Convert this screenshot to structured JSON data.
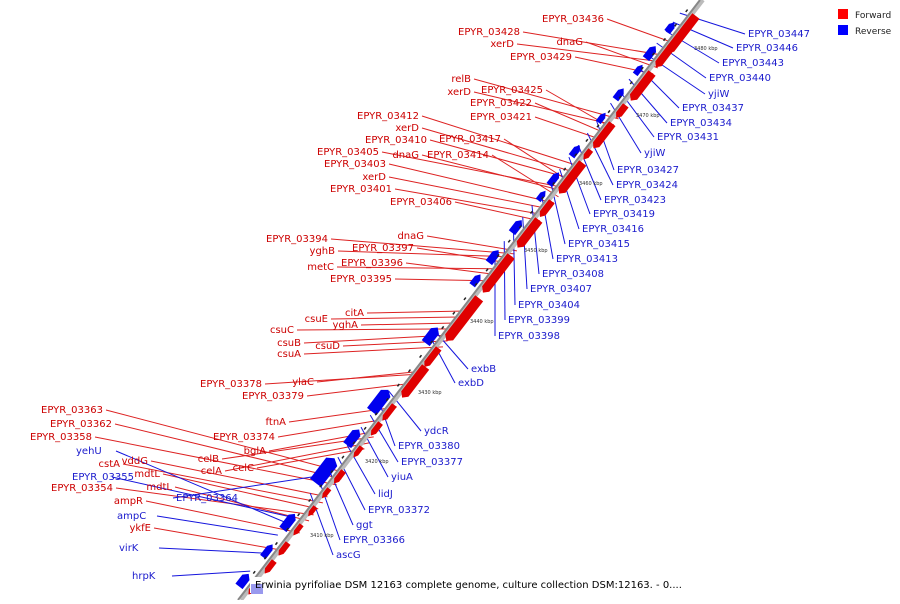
{
  "title": "Erwinia pyrifoliae DSM 12163 complete genome, culture collection DSM:12163. - 0....",
  "legend": [
    {
      "label": "Forward",
      "color": "#ff0000"
    },
    {
      "label": "Reverse",
      "color": "#0000ff"
    }
  ],
  "colors": {
    "forward": "#e00000",
    "forward_line": "#dd2222",
    "reverse": "#0000ee",
    "reverse_line": "#1515dd",
    "backbone": "#888888"
  },
  "ticks": [
    "3410 kbp",
    "3420 kbp",
    "3430 kbp",
    "3440 kbp",
    "3450 kbp",
    "3460 kbp",
    "3470 kbp",
    "3480 kbp"
  ],
  "forward_labels": [
    "EPYR_03436",
    "EPYR_03428",
    "xerD",
    "dnaG",
    "EPYR_03429",
    "relB",
    "xerD",
    "EPYR_03425",
    "EPYR_03422",
    "EPYR_03421",
    "EPYR_03412",
    "xerD",
    "EPYR_03410",
    "EPYR_03417",
    "EPYR_03405",
    "dnaG",
    "EPYR_03414",
    "EPYR_03403",
    "xerD",
    "EPYR_03401",
    "EPYR_03406",
    "dnaG",
    "EPYR_03394",
    "yghB",
    "EPYR_03397",
    "metC",
    "EPYR_03396",
    "EPYR_03395",
    "citA",
    "csuE",
    "yghA",
    "csuC",
    "csuB",
    "csuD",
    "csuA",
    "ylaC",
    "EPYR_03378",
    "EPYR_03379",
    "ftnA",
    "EPYR_03374",
    "bglA",
    "celB",
    "celA",
    "celC",
    "EPYR_03363",
    "EPYR_03362",
    "EPYR_03358",
    "vddG",
    "cstA",
    "mdtL",
    "EPYR_03354",
    "mdtL",
    "ampR",
    "ykfE"
  ],
  "reverse_labels": [
    "EPYR_03447",
    "EPYR_03446",
    "EPYR_03443",
    "EPYR_03440",
    "yjiW",
    "EPYR_03437",
    "EPYR_03434",
    "EPYR_03431",
    "yjiW",
    "EPYR_03427",
    "EPYR_03424",
    "EPYR_03423",
    "EPYR_03419",
    "EPYR_03416",
    "EPYR_03415",
    "EPYR_03413",
    "EPYR_03408",
    "EPYR_03407",
    "EPYR_03404",
    "EPYR_03399",
    "EPYR_03398",
    "exbB",
    "exbD",
    "ydcR",
    "EPYR_03380",
    "EPYR_03377",
    "yiuA",
    "lidJ",
    "EPYR_03372",
    "ggt",
    "EPYR_03366",
    "ascG",
    "EPYR_03364",
    "yehU",
    "EPYR_03355",
    "ampC",
    "virK",
    "hrpK"
  ]
}
